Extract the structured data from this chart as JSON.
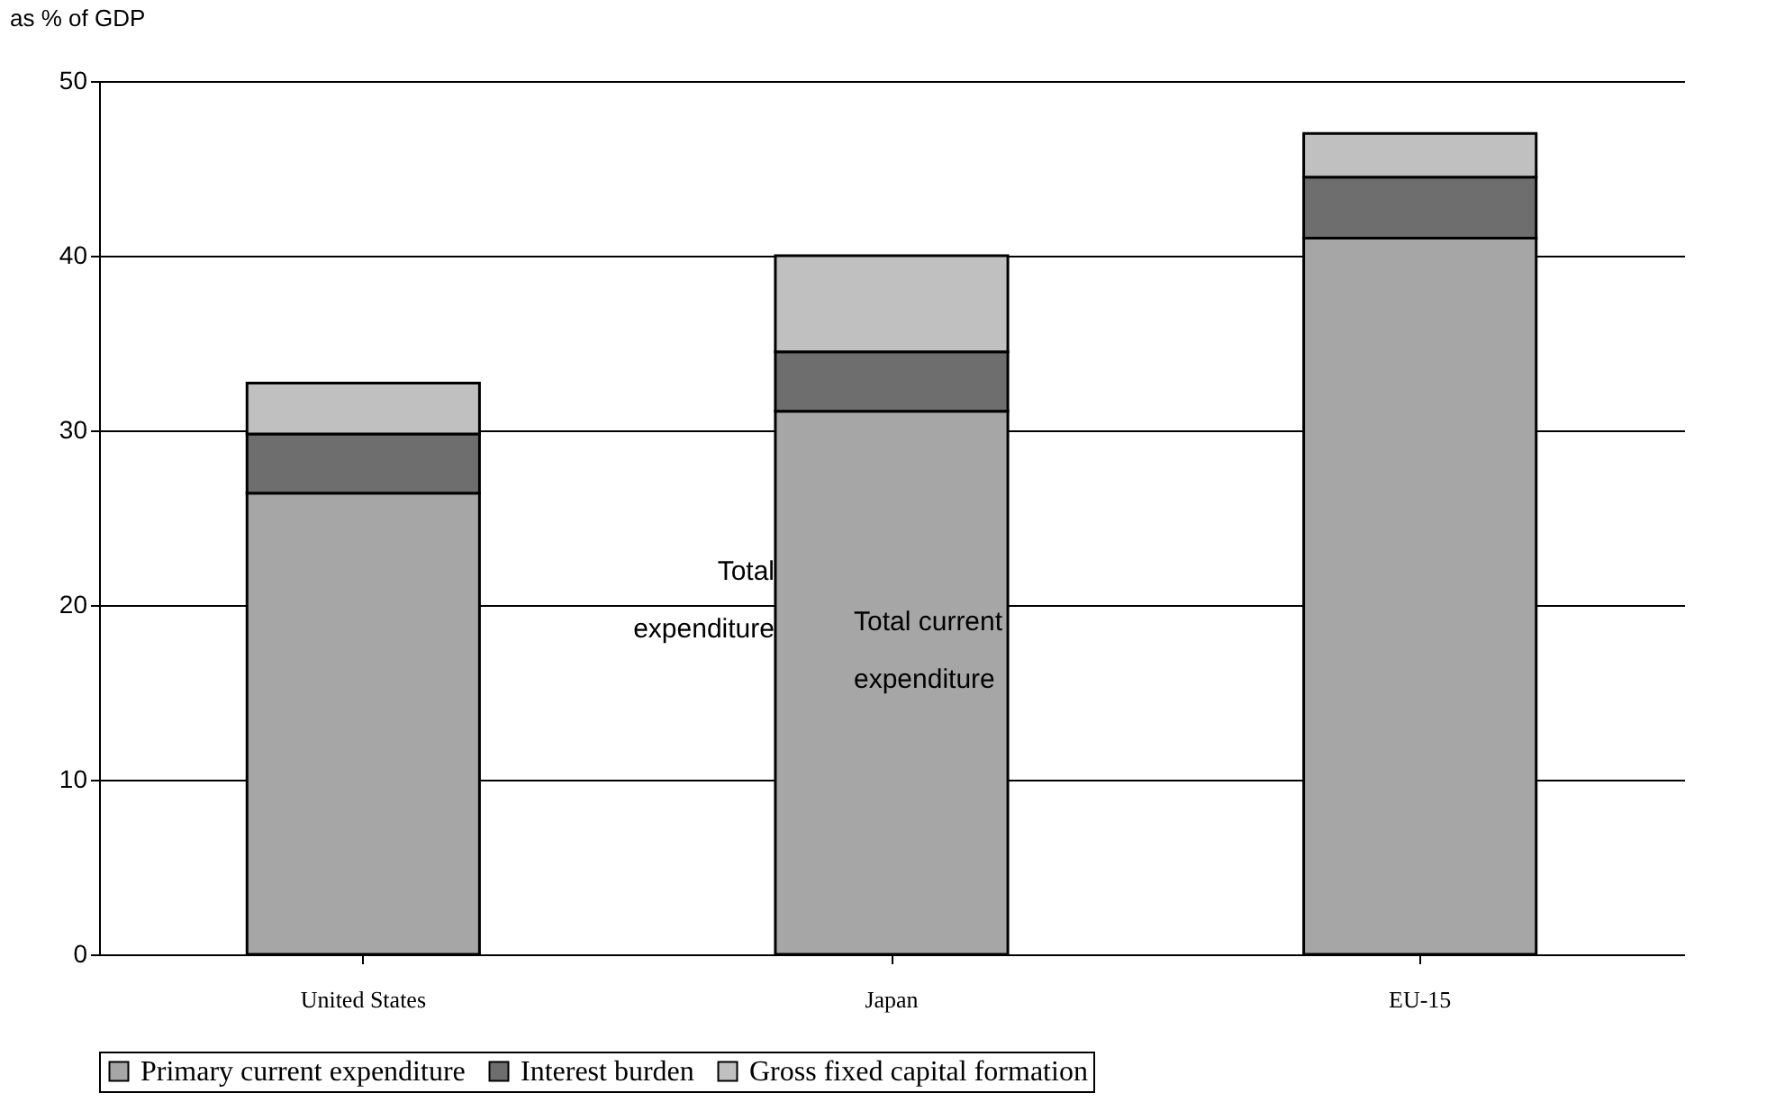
{
  "chart_data": {
    "type": "bar",
    "stacked": true,
    "ylabel": "as % of GDP",
    "categories": [
      "United States",
      "Japan",
      "EU-15"
    ],
    "series": [
      {
        "name": "Primary current expenditure",
        "color": "#a6a6a6",
        "values": [
          26.4,
          31.1,
          41.0
        ]
      },
      {
        "name": "Interest burden",
        "color": "#6e6e6e",
        "values": [
          3.4,
          3.4,
          3.5
        ]
      },
      {
        "name": "Gross fixed capital formation",
        "color": "#c0c0c0",
        "values": [
          2.9,
          5.5,
          2.5
        ]
      }
    ],
    "ylim": [
      0,
      50
    ],
    "yticks": [
      0,
      10,
      20,
      30,
      40,
      50
    ],
    "grid": "y",
    "legend": "bottom",
    "annotations": [
      "Total expenditure",
      "Total current expenditure"
    ]
  }
}
